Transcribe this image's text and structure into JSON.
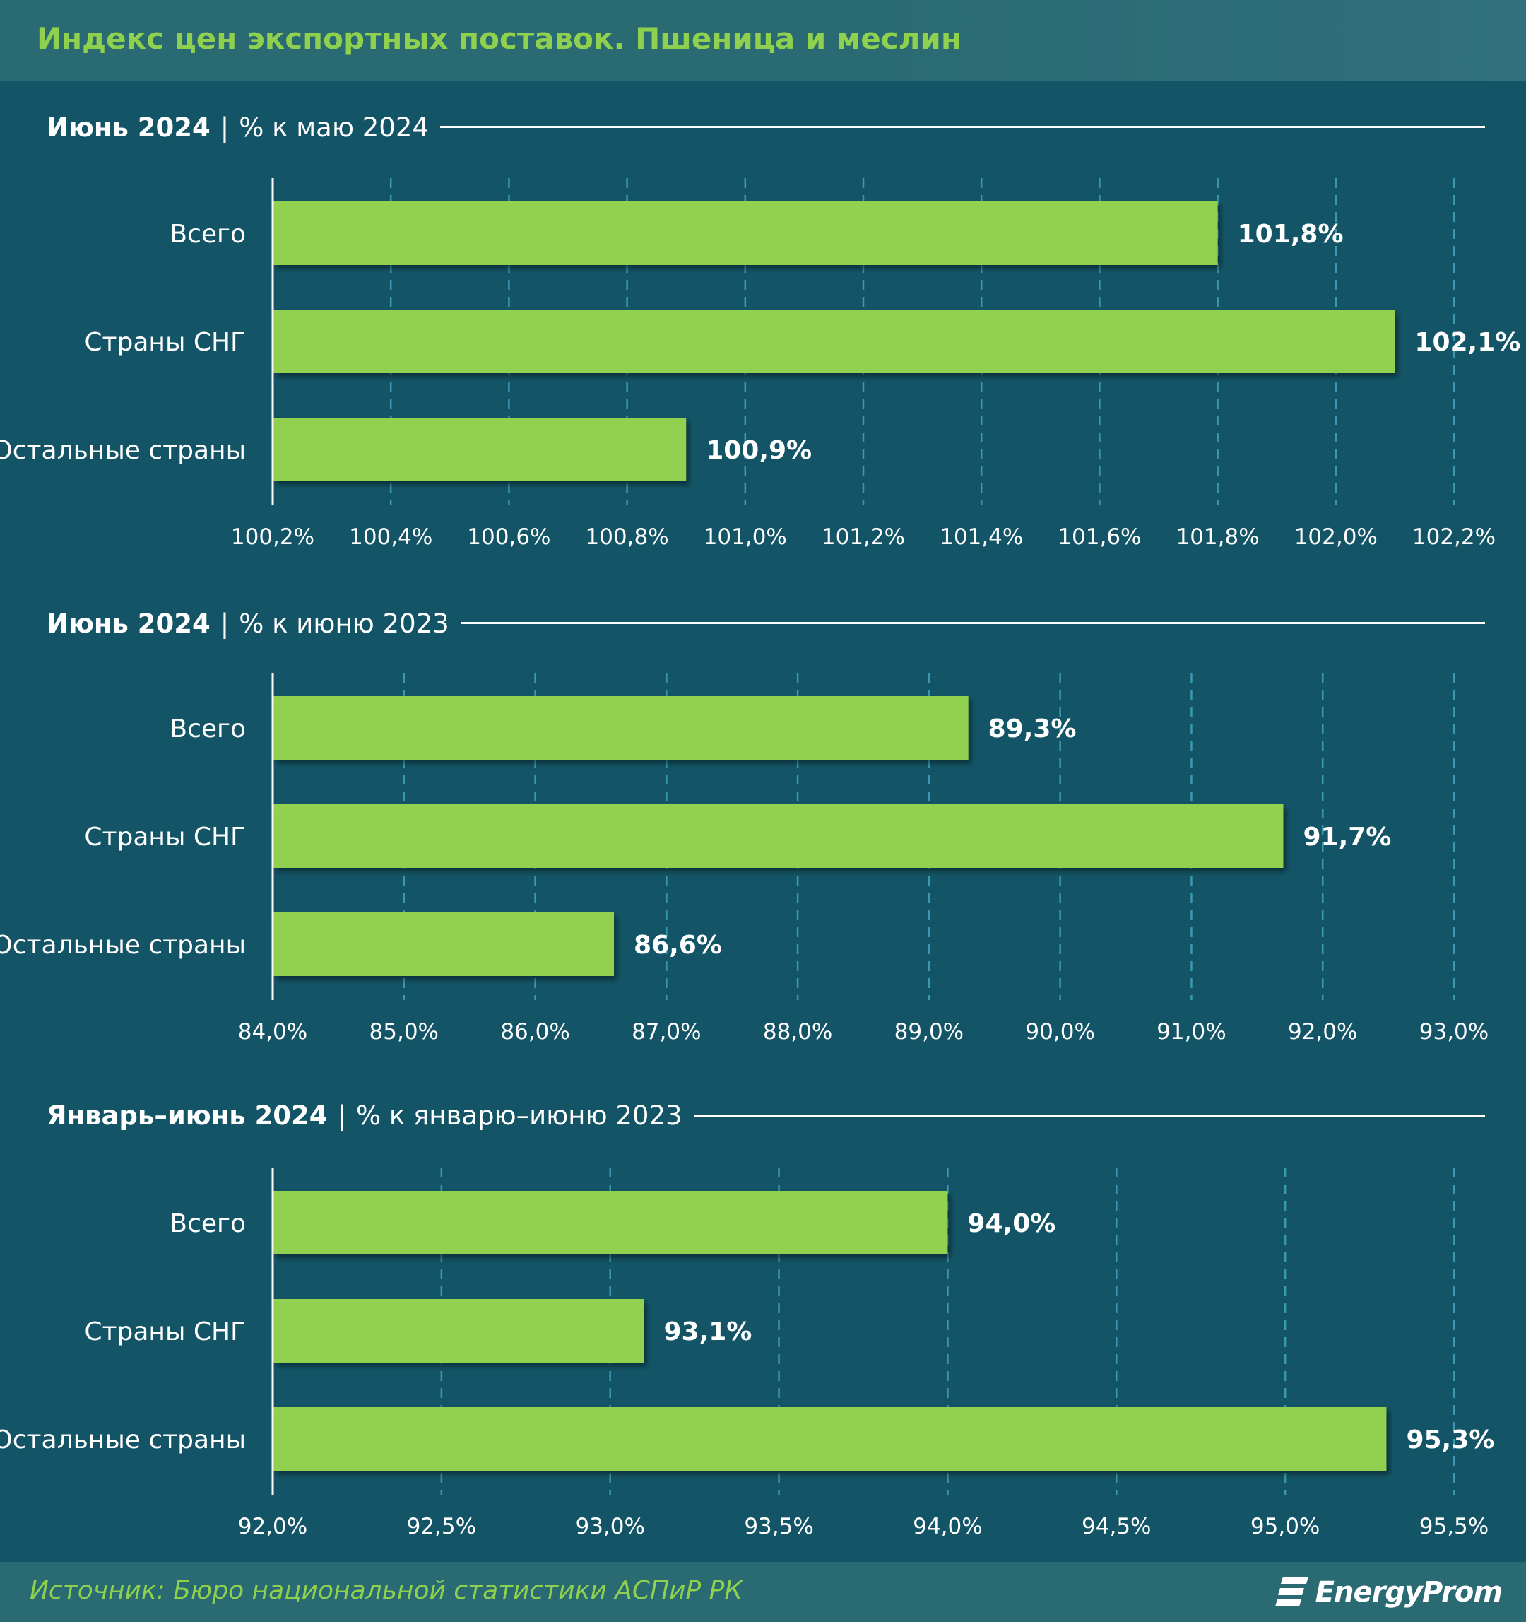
{
  "title": "Индекс цен экспортных поставок. Пшеница и меслин",
  "footer": {
    "source": "Источник: Бюро национальной статистики АСПиР РК",
    "logo": "EnergyProm"
  },
  "colors": {
    "background": "#135566",
    "bar": "#92d050",
    "accent_text": "#8fd14f",
    "grid": "#3a98b0",
    "text": "#ffffff"
  },
  "chart_data": [
    {
      "type": "bar",
      "orientation": "horizontal",
      "heading_bold": "Июнь 2024",
      "heading_rest": "% к маю 2024",
      "categories": [
        "Всего",
        "Страны СНГ",
        "Остальные страны"
      ],
      "values": [
        101.8,
        102.1,
        100.9
      ],
      "value_labels": [
        "101,8%",
        "102,1%",
        "100,9%"
      ],
      "xlim": [
        100.2,
        102.2
      ],
      "ticks": [
        100.2,
        100.4,
        100.6,
        100.8,
        101.0,
        101.2,
        101.4,
        101.6,
        101.8,
        102.0,
        102.2
      ],
      "tick_labels": [
        "100,2%",
        "100,4%",
        "100,6%",
        "100,8%",
        "101,0%",
        "101,2%",
        "101,4%",
        "101,6%",
        "101,8%",
        "102,0%",
        "102,2%"
      ],
      "grid": true
    },
    {
      "type": "bar",
      "orientation": "horizontal",
      "heading_bold": "Июнь 2024",
      "heading_rest": "% к июню 2023",
      "categories": [
        "Всего",
        "Страны СНГ",
        "Остальные страны"
      ],
      "values": [
        89.3,
        91.7,
        86.6
      ],
      "value_labels": [
        "89,3%",
        "91,7%",
        "86,6%"
      ],
      "xlim": [
        84.0,
        93.0
      ],
      "ticks": [
        84.0,
        85.0,
        86.0,
        87.0,
        88.0,
        89.0,
        90.0,
        91.0,
        92.0,
        93.0
      ],
      "tick_labels": [
        "84,0%",
        "85,0%",
        "86,0%",
        "87,0%",
        "88,0%",
        "89,0%",
        "90,0%",
        "91,0%",
        "92,0%",
        "93,0%"
      ],
      "grid": true
    },
    {
      "type": "bar",
      "orientation": "horizontal",
      "heading_bold": "Январь–июнь 2024",
      "heading_rest": "% к январю–июню 2023",
      "categories": [
        "Всего",
        "Страны СНГ",
        "Остальные страны"
      ],
      "values": [
        94.0,
        93.1,
        95.3
      ],
      "value_labels": [
        "94,0%",
        "93,1%",
        "95,3%"
      ],
      "xlim": [
        92.0,
        95.5
      ],
      "ticks": [
        92.0,
        92.5,
        93.0,
        93.5,
        94.0,
        94.5,
        95.0,
        95.5
      ],
      "tick_labels": [
        "92,0%",
        "92,5%",
        "93,0%",
        "93,5%",
        "94,0%",
        "94,5%",
        "95,0%",
        "95,5%"
      ],
      "grid": true
    }
  ]
}
